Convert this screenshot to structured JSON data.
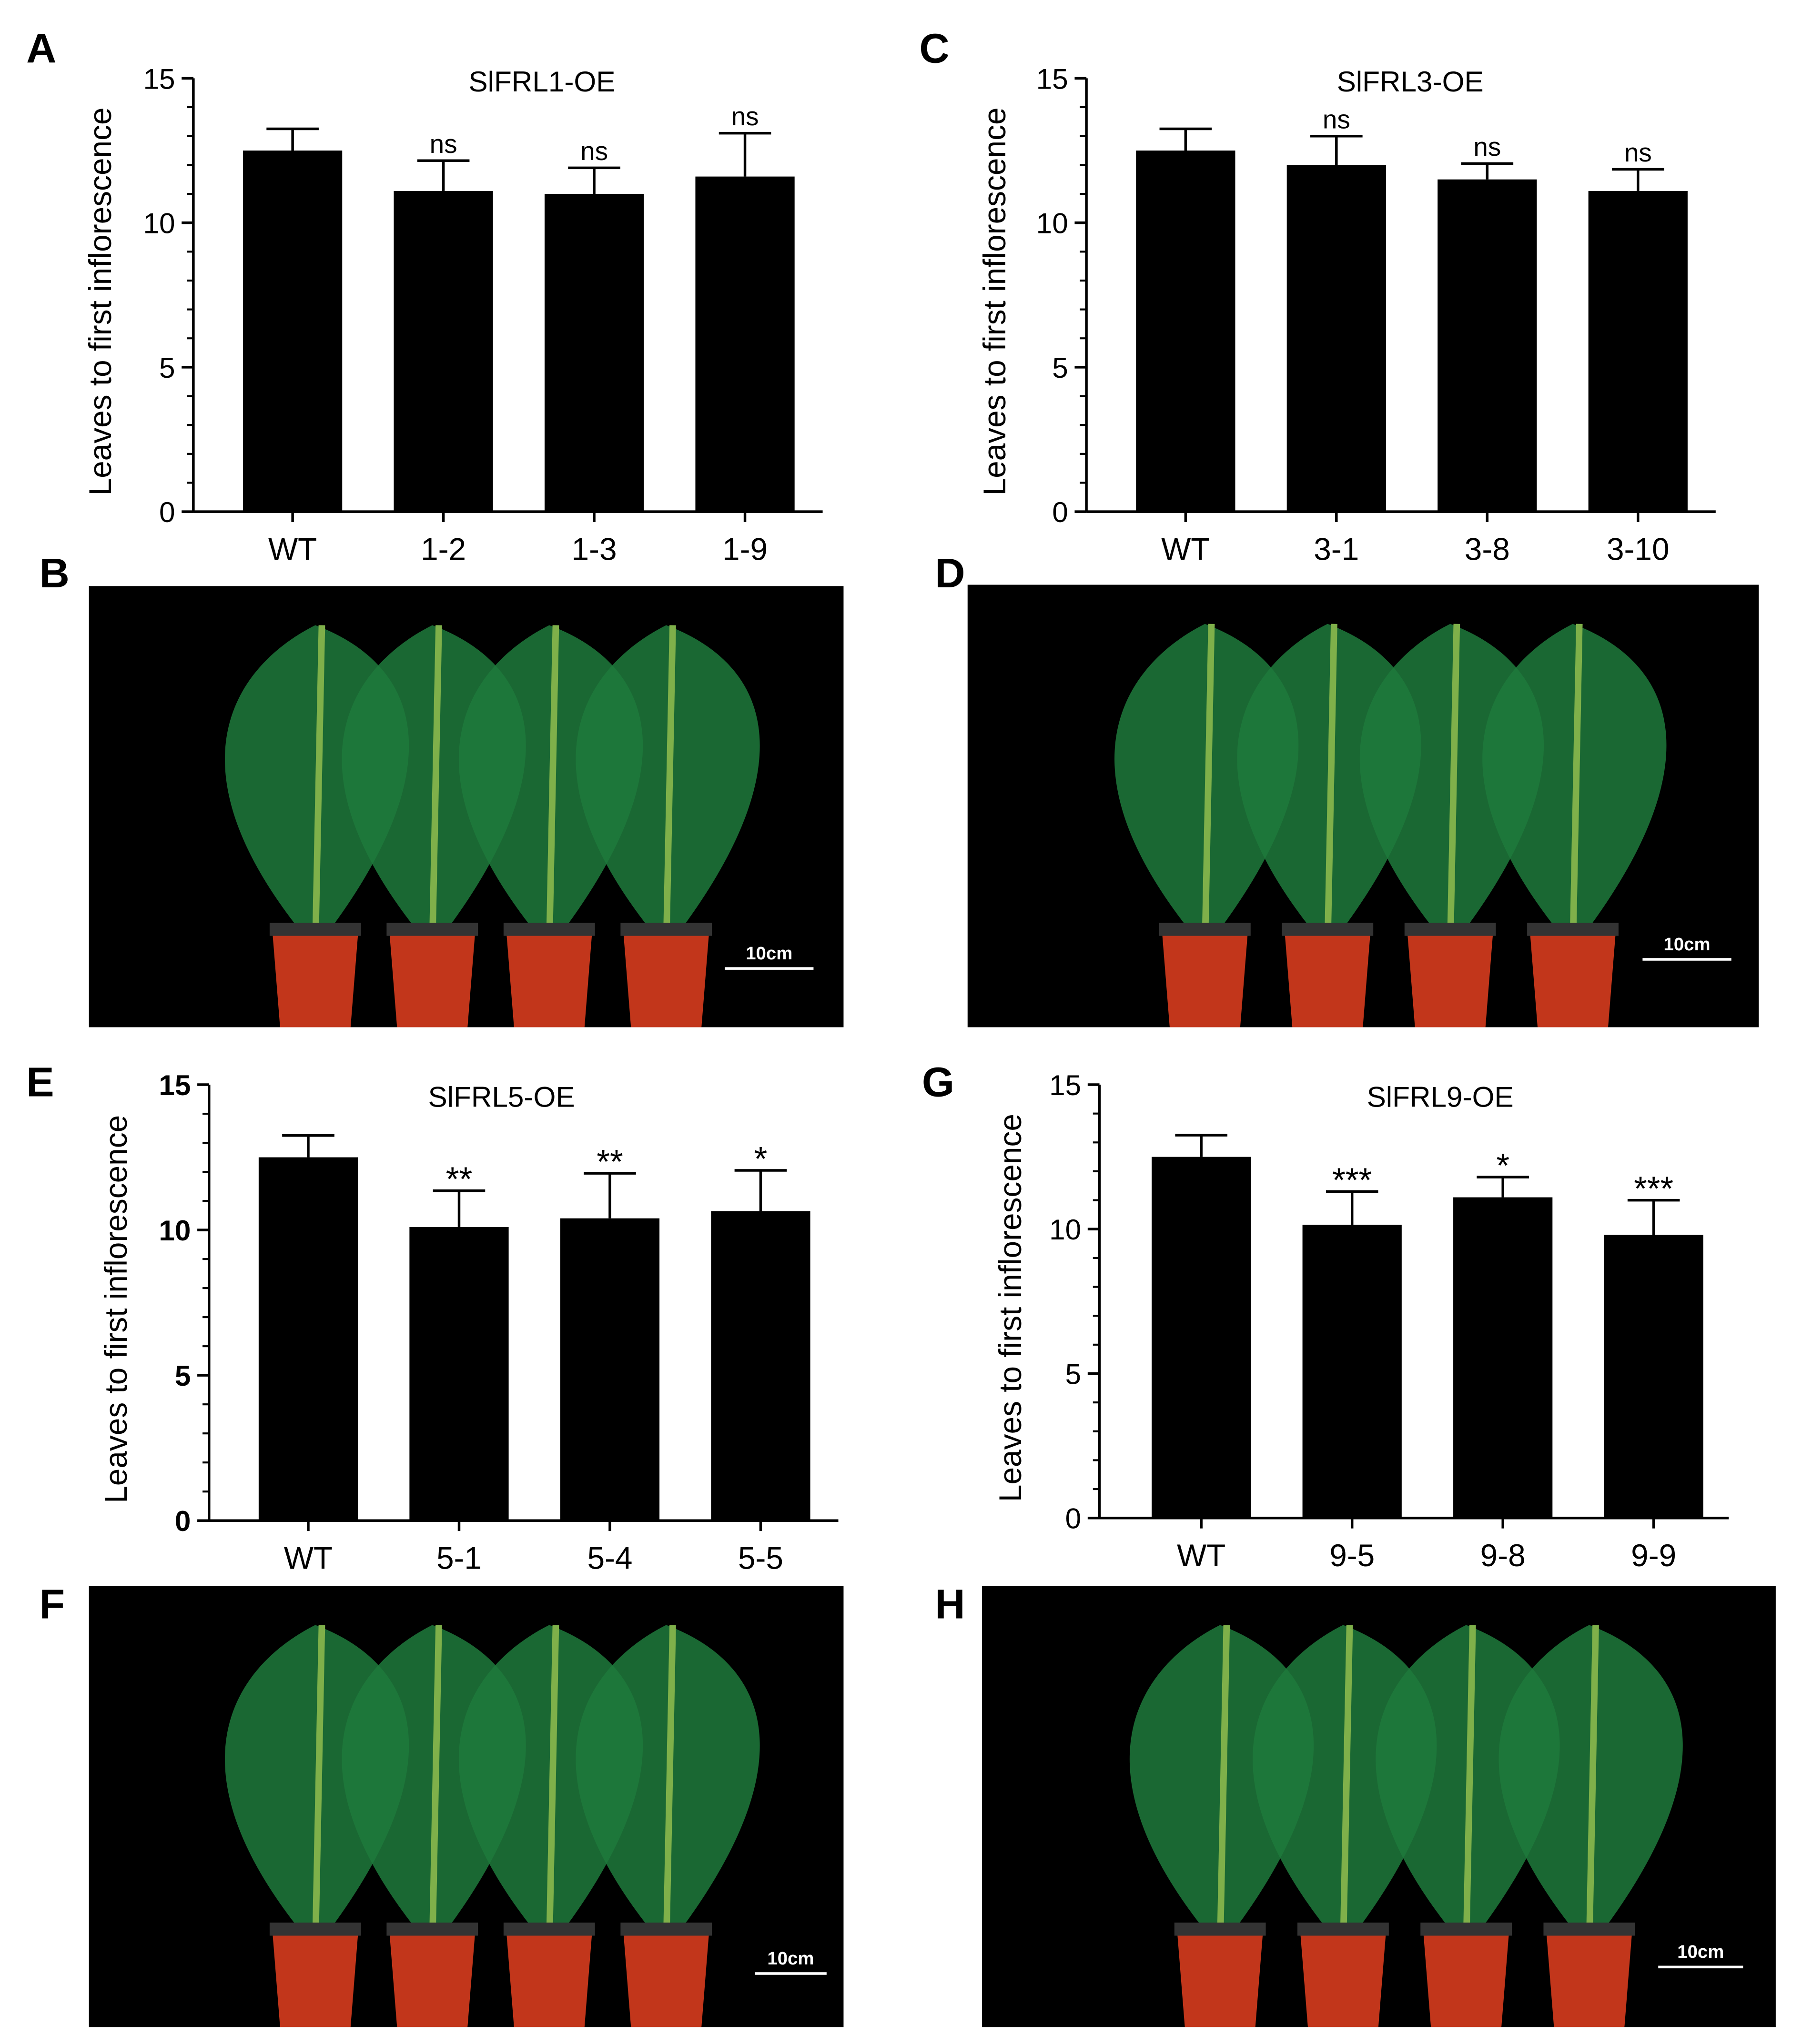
{
  "chart_data": [
    {
      "type": "bar",
      "panel_label": "A",
      "title": "SlFRL1-OE",
      "ylabel": "Leaves to first inflorescence",
      "categories": [
        "WT",
        "1-2",
        "1-3",
        "1-9"
      ],
      "values": [
        12.5,
        11.1,
        11.0,
        11.6
      ],
      "errors": [
        0.75,
        1.05,
        0.9,
        1.5
      ],
      "annotations": [
        null,
        "ns",
        "ns",
        "ns"
      ],
      "color": "#000000",
      "ylim": [
        0,
        15
      ],
      "yticks": [
        0,
        5,
        10,
        15
      ]
    },
    {
      "type": "bar",
      "panel_label": "C",
      "title": "SlFRL3-OE",
      "ylabel": "Leaves to first inflorescence",
      "categories": [
        "WT",
        "3-1",
        "3-8",
        "3-10"
      ],
      "values": [
        12.5,
        12.0,
        11.5,
        11.1
      ],
      "errors": [
        0.75,
        1.0,
        0.55,
        0.75
      ],
      "annotations": [
        null,
        "ns",
        "ns",
        "ns"
      ],
      "color": "#000000",
      "ylim": [
        0,
        15
      ],
      "yticks": [
        0,
        5,
        10,
        15
      ]
    },
    {
      "type": "bar",
      "panel_label": "E",
      "title": "SlFRL5-OE",
      "ylabel": "Leaves to first inflorescence",
      "categories": [
        "WT",
        "5-1",
        "5-4",
        "5-5"
      ],
      "values": [
        12.5,
        10.1,
        10.4,
        10.65
      ],
      "errors": [
        0.75,
        1.25,
        1.55,
        1.4
      ],
      "annotations": [
        null,
        "**",
        "**",
        "*"
      ],
      "color": "#000000",
      "ylim": [
        0,
        15
      ],
      "yticks": [
        0,
        5,
        10,
        15
      ]
    },
    {
      "type": "bar",
      "panel_label": "G",
      "title": "SlFRL9-OE",
      "ylabel": "Leaves to first inflorescence",
      "categories": [
        "WT",
        "9-5",
        "9-8",
        "9-9"
      ],
      "values": [
        12.5,
        10.15,
        11.1,
        9.8
      ],
      "errors": [
        0.75,
        1.15,
        0.7,
        1.2
      ],
      "annotations": [
        null,
        "***",
        "*",
        "***"
      ],
      "color": "#000000",
      "ylim": [
        0,
        15
      ],
      "yticks": [
        0,
        5,
        10,
        15
      ]
    }
  ],
  "photos": [
    {
      "panel_label": "B",
      "scale_bar": "10cm"
    },
    {
      "panel_label": "D",
      "scale_bar": "10cm"
    },
    {
      "panel_label": "F",
      "scale_bar": "10cm"
    },
    {
      "panel_label": "H",
      "scale_bar": "10cm"
    }
  ]
}
